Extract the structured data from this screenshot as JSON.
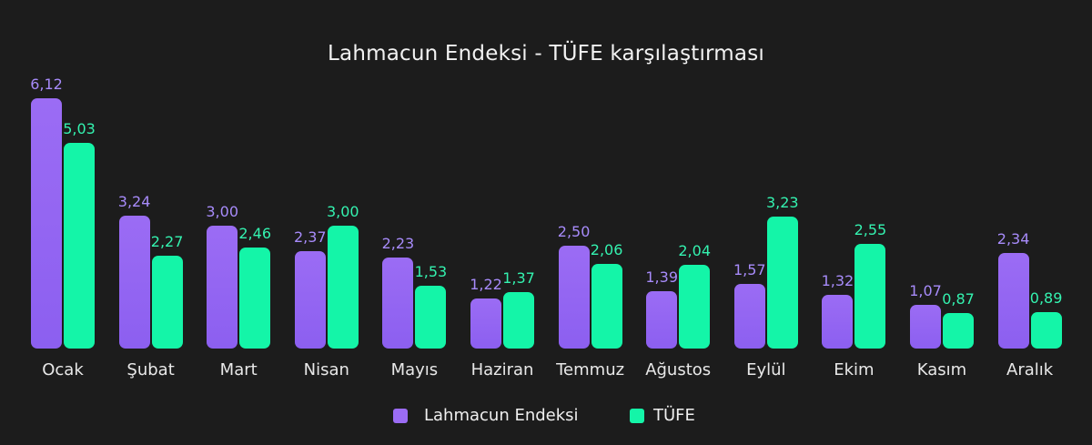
{
  "header": {
    "title": "Lahmacun Endeksi - TÜFE karşılaştırması"
  },
  "legend": {
    "items": [
      {
        "label": "Lahmacun Endeksi",
        "color": "#9b6cf4"
      },
      {
        "label": "TÜFE",
        "color": "#14f5a8"
      }
    ]
  },
  "labels": {
    "a": [
      "6,12",
      "3,24",
      "3,00",
      "2,37",
      "2,23",
      "1,22",
      "2,50",
      "1,39",
      "1,57",
      "1,32",
      "1,07",
      "2,34"
    ],
    "b": [
      "5,03",
      "2,27",
      "2,46",
      "3,00",
      "1,53",
      "1,37",
      "2,06",
      "2,04",
      "3,23",
      "2,55",
      "0,87",
      "0,89"
    ]
  },
  "chart_data": {
    "type": "bar",
    "title": "Lahmacun Endeksi - TÜFE karşılaştırması",
    "xlabel": "",
    "ylabel": "",
    "categories": [
      "Ocak",
      "Şubat",
      "Mart",
      "Nisan",
      "Mayıs",
      "Haziran",
      "Temmuz",
      "Ağustos",
      "Eylül",
      "Ekim",
      "Kasım",
      "Aralık"
    ],
    "series": [
      {
        "name": "Lahmacun Endeksi",
        "color": "#9b6cf4",
        "values": [
          6.12,
          3.24,
          3.0,
          2.37,
          2.23,
          1.22,
          2.5,
          1.39,
          1.57,
          1.32,
          1.07,
          2.34
        ]
      },
      {
        "name": "TÜFE",
        "color": "#14f5a8",
        "values": [
          5.03,
          2.27,
          2.46,
          3.0,
          1.53,
          1.37,
          2.06,
          2.04,
          3.23,
          2.55,
          0.87,
          0.89
        ]
      }
    ],
    "ylim": [
      0,
      6.5
    ],
    "grid": false,
    "axes_visible": false,
    "data_labels": true,
    "legend_position": "bottom"
  }
}
